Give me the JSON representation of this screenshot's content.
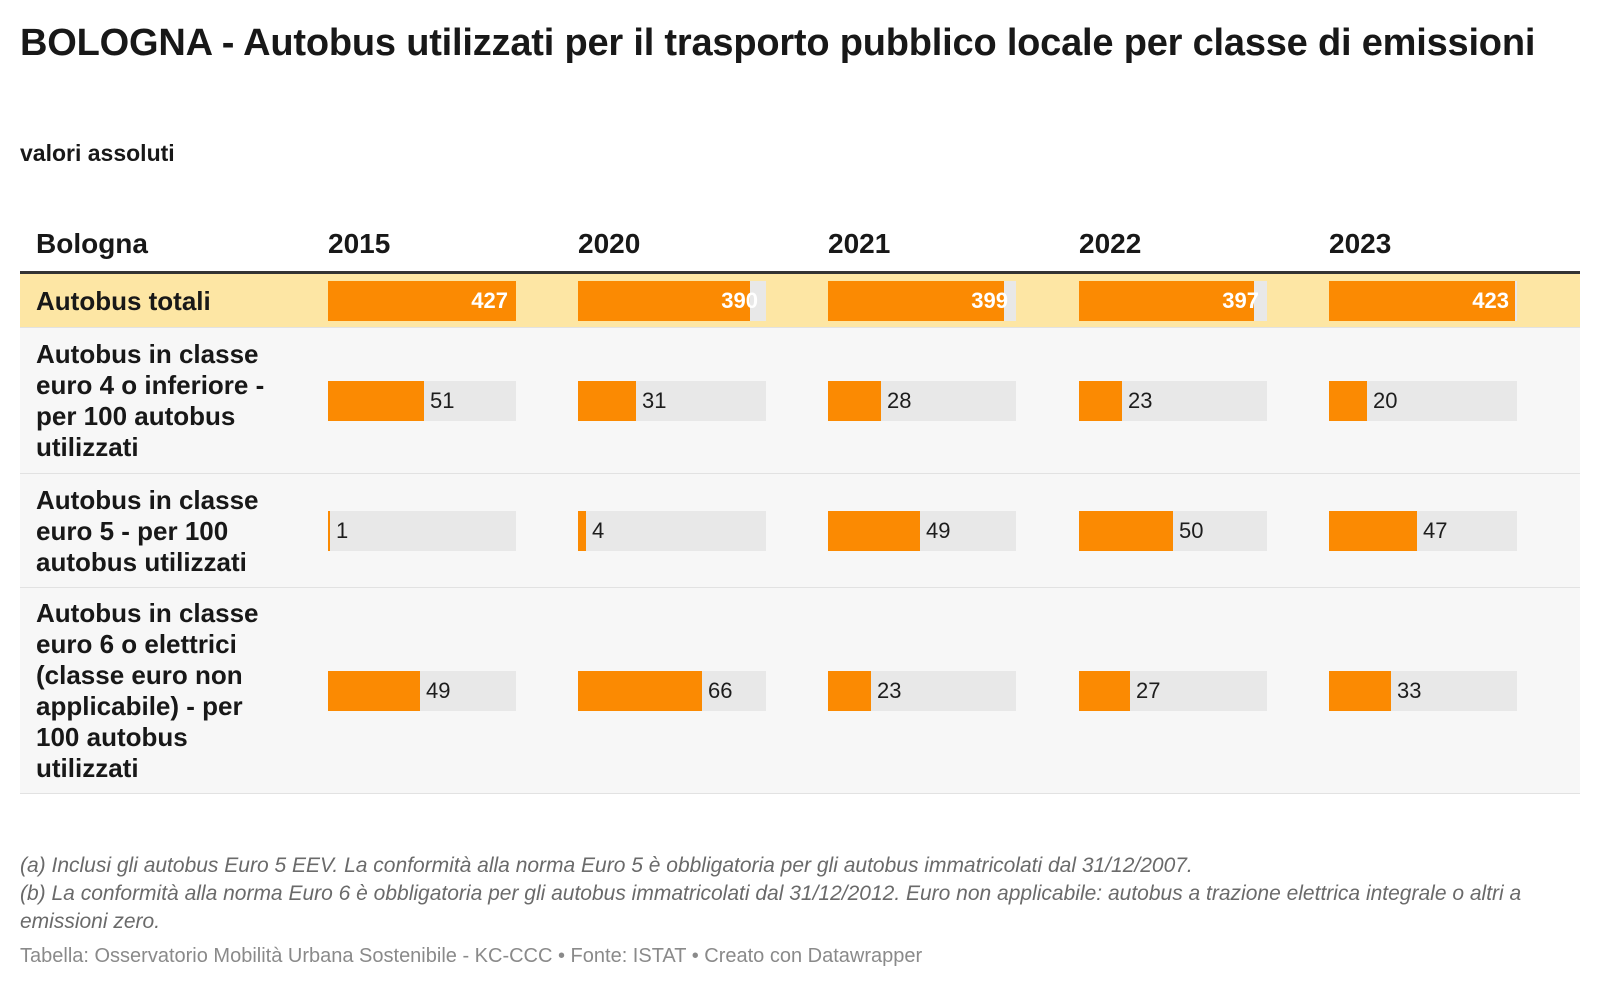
{
  "title": "BOLOGNA - Autobus utilizzati per il trasporto pubblico locale per classe di emissioni",
  "subtitle": "valori assoluti",
  "table": {
    "first_header": "Bologna",
    "years": [
      "2015",
      "2020",
      "2021",
      "2022",
      "2023"
    ]
  },
  "chart_data": {
    "type": "table",
    "columns": [
      "2015",
      "2020",
      "2021",
      "2022",
      "2023"
    ],
    "bar_color": "#fb8a02",
    "highlight_color": "#fde6a4",
    "rows": [
      {
        "label": "Autobus totali",
        "values": [
          427,
          390,
          399,
          397,
          423
        ],
        "highlight": true,
        "value_inside_bar": true
      },
      {
        "label": "Autobus in classe euro 4 o inferiore - per 100 autobus utilizzati",
        "values": [
          51,
          31,
          28,
          23,
          20
        ]
      },
      {
        "label": "Autobus in classe euro 5 - per 100 autobus utilizzati",
        "values": [
          1,
          4,
          49,
          50,
          47
        ]
      },
      {
        "label": "Autobus in classe euro 6 o elettrici (classe euro non applicabile) - per 100 autobus utilizzati",
        "values": [
          49,
          66,
          23,
          27,
          33
        ]
      }
    ]
  },
  "notes": [
    "(a) Inclusi gli autobus Euro 5 EEV. La conformità alla norma Euro 5 è obbligatoria per gli autobus immatricolati dal 31/12/2007.",
    "(b) La conformità alla norma Euro 6 è obbligatoria per gli autobus immatricolati dal 31/12/2012. Euro non applicabile: autobus a trazione elettrica integrale o altri a emissioni zero."
  ],
  "credit": "Tabella: Osservatorio Mobilità Urbana Sostenibile - KC-CCC • Fonte: ISTAT • Creato con Datawrapper"
}
